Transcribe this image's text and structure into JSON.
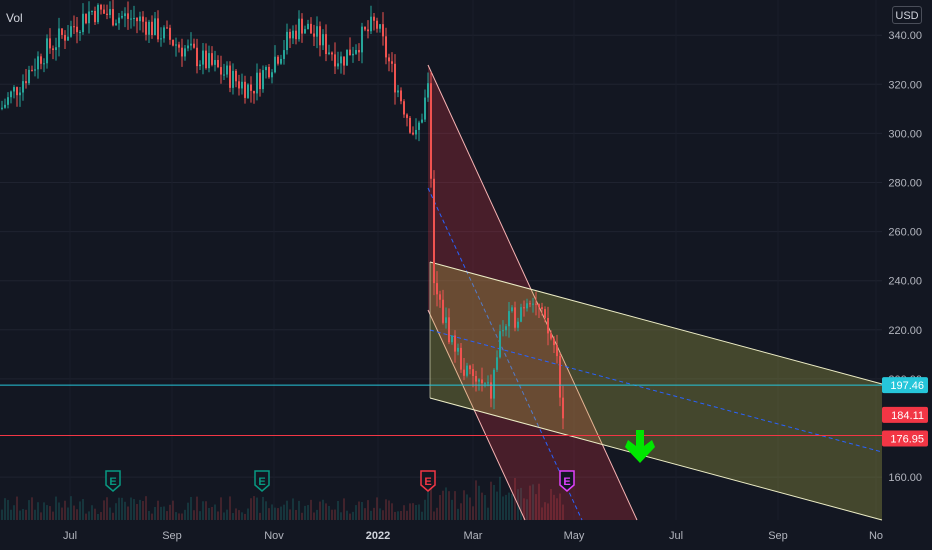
{
  "chart": {
    "indicator_label": "Vol",
    "currency": "USD",
    "price_ticks": [
      "340.00",
      "320.00",
      "300.00",
      "280.00",
      "260.00",
      "240.00",
      "220.00",
      "200.00",
      "160.00"
    ],
    "price_tick_values": [
      340,
      320,
      300,
      280,
      260,
      240,
      220,
      200,
      160
    ],
    "time_ticks": [
      {
        "label": "Jul",
        "bold": false
      },
      {
        "label": "Sep",
        "bold": false
      },
      {
        "label": "Nov",
        "bold": false
      },
      {
        "label": "2022",
        "bold": true
      },
      {
        "label": "Mar",
        "bold": false
      },
      {
        "label": "May",
        "bold": false
      },
      {
        "label": "Jul",
        "bold": false
      },
      {
        "label": "Sep",
        "bold": false
      },
      {
        "label": "No",
        "bold": false
      }
    ],
    "price_tags": [
      {
        "label": "197.46",
        "value": 197.46,
        "color": "#26c6da",
        "kind": "horizontal-line"
      },
      {
        "label": "184.11",
        "value": 184.11,
        "color": "#f23645",
        "kind": "last-price"
      },
      {
        "label": "176.95",
        "value": 176.95,
        "color": "#f23645",
        "kind": "horizontal-line"
      }
    ],
    "earnings_markers": [
      {
        "letter": "E",
        "color": "#089981"
      },
      {
        "letter": "E",
        "color": "#089981"
      },
      {
        "letter": "E",
        "color": "#f23645"
      },
      {
        "letter": "E",
        "color": "#e040fb"
      }
    ],
    "colors": {
      "up": "#26a69a",
      "down": "#ef5350",
      "background": "#131722",
      "steep_channel_fill": "#f23645",
      "shallow_channel_fill": "#b5b54a",
      "arrow": "#00e600"
    }
  },
  "chart_data": {
    "type": "candlestick",
    "y_scale": "linear",
    "ylim": [
      140,
      350
    ],
    "x_range": [
      "Jun 2021",
      "Nov 2022"
    ],
    "price_path": [
      [
        "Jun 2021",
        310
      ],
      [
        "Jul 2021",
        332
      ],
      [
        "Aug 2021",
        350
      ],
      [
        "Sep 2021",
        346
      ],
      [
        "Oct 2021",
        318
      ],
      [
        "Nov 2021",
        338
      ],
      [
        "Dec 2021",
        340
      ],
      [
        "Jan 2022",
        300
      ],
      [
        "Feb 2022",
        212
      ],
      [
        "Mar 2022",
        222
      ],
      [
        "Apr 2022",
        226
      ],
      [
        "Apr 2022 end",
        184.11
      ]
    ],
    "last_price": 184.11,
    "horizontal_levels": [
      197.46,
      176.95
    ],
    "channels": [
      {
        "name": "steep-descending-channel",
        "upper_start": [
          "Jan 2022",
          328
        ],
        "upper_end": [
          "May 2022",
          176
        ],
        "lower_start": [
          "Jan 2022",
          243
        ],
        "lower_end": [
          "May 2022",
          140
        ]
      },
      {
        "name": "shallow-descending-channel",
        "upper_start": [
          "Jan 2022",
          248
        ],
        "upper_end": [
          "Nov 2022",
          200
        ],
        "lower_start": [
          "Jan 2022",
          192
        ],
        "lower_end": [
          "Nov 2022",
          145
        ]
      }
    ]
  }
}
